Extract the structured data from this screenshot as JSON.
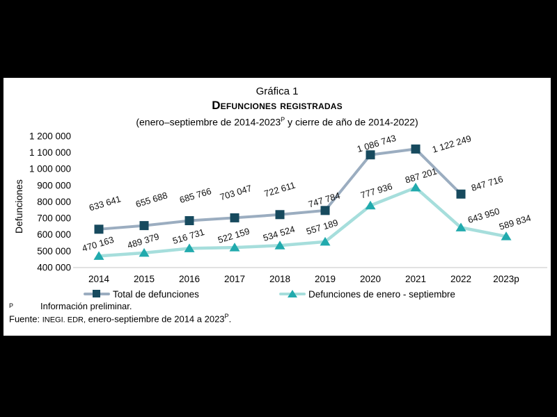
{
  "page": {
    "title_line1": "Gráfica 1",
    "title_line2": "Defunciones registradas",
    "subtitle_prefix": "(enero–septiembre de 2014-2023",
    "subtitle_sup": "P",
    "subtitle_suffix": " y cierre de año de 2014-2022)"
  },
  "footer": {
    "footnote_marker": "P",
    "footnote_text": "Información preliminar.",
    "source_label": "Fuente:",
    "source_org": "INEGI. EDR,",
    "source_text": " enero-septiembre de 2014 a 2023",
    "source_sup": "P",
    "source_end": "."
  },
  "chart_data": {
    "type": "line",
    "title": "Gráfica 1 — Defunciones registradas",
    "subtitle": "(enero–septiembre de 2014-2023P y cierre de año de 2014-2022)",
    "xlabel": "",
    "ylabel": "Defunciones",
    "ylim": [
      400000,
      1200000
    ],
    "ytick_step": 100000,
    "yticks": [
      "1 200 000",
      "1 100 000",
      "1 000 000",
      "900 000",
      "800 000",
      "700 000",
      "600 000",
      "500 000",
      "400 000"
    ],
    "categories": [
      "2014",
      "2015",
      "2016",
      "2017",
      "2018",
      "2019",
      "2020",
      "2021",
      "2022",
      "2023p"
    ],
    "grid": false,
    "legend_position": "bottom",
    "axis_line_color": "#D9D9D9",
    "series": [
      {
        "name": "Total de defunciones",
        "marker": "square",
        "line_color": "#9BADC0",
        "marker_color": "#174A5E",
        "values": [
          633641,
          655688,
          685766,
          703047,
          722611,
          747784,
          1086743,
          1122249,
          847716,
          null
        ],
        "labels": [
          "633 641",
          "655 688",
          "685 766",
          "703 047",
          "722 611",
          "747 784",
          "1 086 743",
          "1 122 249",
          "847 716"
        ]
      },
      {
        "name": "Defunciones de enero - septiembre",
        "marker": "triangle",
        "line_color": "#A6DEDC",
        "marker_color": "#21AAAD",
        "values": [
          470163,
          489379,
          516731,
          522159,
          534524,
          557189,
          777936,
          887201,
          643950,
          589834
        ],
        "labels": [
          "470 163",
          "489 379",
          "516 731",
          "522 159",
          "534 524",
          "557 189",
          "777 936",
          "887 201",
          "643 950",
          "589 834"
        ]
      }
    ]
  }
}
